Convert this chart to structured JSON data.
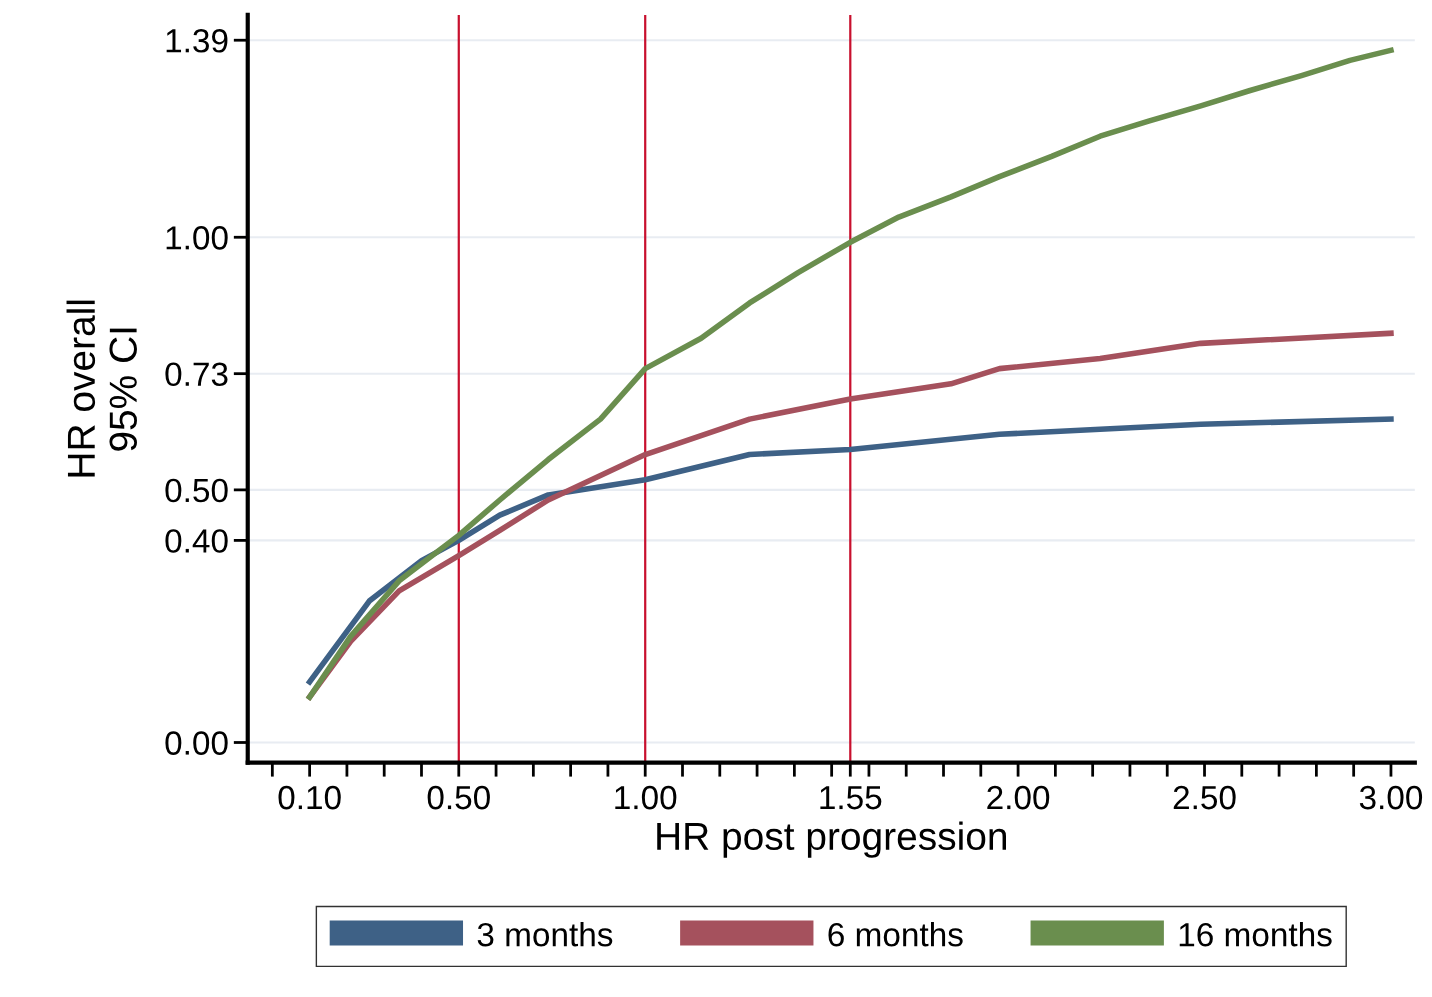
{
  "chart_data": {
    "type": "line",
    "xlabel": "HR post progression",
    "ylabel": "HR overall\n95% CI",
    "xlim": [
      -0.066,
      3.064
    ],
    "ylim": [
      -0.04,
      1.44
    ],
    "xticks": [
      {
        "value": 0.0,
        "label": null
      },
      {
        "value": 0.1,
        "label": "0.10"
      },
      {
        "value": 0.2,
        "label": null
      },
      {
        "value": 0.3,
        "label": null
      },
      {
        "value": 0.4,
        "label": null
      },
      {
        "value": 0.5,
        "label": "0.50"
      },
      {
        "value": 0.6,
        "label": null
      },
      {
        "value": 0.7,
        "label": null
      },
      {
        "value": 0.8,
        "label": null
      },
      {
        "value": 0.9,
        "label": null
      },
      {
        "value": 1.0,
        "label": "1.00"
      },
      {
        "value": 1.1,
        "label": null
      },
      {
        "value": 1.2,
        "label": null
      },
      {
        "value": 1.3,
        "label": null
      },
      {
        "value": 1.4,
        "label": null
      },
      {
        "value": 1.5,
        "label": null
      },
      {
        "value": 1.55,
        "label": "1.55"
      },
      {
        "value": 1.6,
        "label": null
      },
      {
        "value": 1.7,
        "label": null
      },
      {
        "value": 1.8,
        "label": null
      },
      {
        "value": 1.9,
        "label": null
      },
      {
        "value": 2.0,
        "label": "2.00"
      },
      {
        "value": 2.1,
        "label": null
      },
      {
        "value": 2.2,
        "label": null
      },
      {
        "value": 2.3,
        "label": null
      },
      {
        "value": 2.4,
        "label": null
      },
      {
        "value": 2.5,
        "label": "2.50"
      },
      {
        "value": 2.6,
        "label": null
      },
      {
        "value": 2.7,
        "label": null
      },
      {
        "value": 2.8,
        "label": null
      },
      {
        "value": 2.9,
        "label": null
      },
      {
        "value": 3.0,
        "label": "3.00"
      }
    ],
    "yticks": [
      {
        "value": 0.0,
        "label": "0.00"
      },
      {
        "value": 0.4,
        "label": "0.40"
      },
      {
        "value": 0.5,
        "label": "0.50"
      },
      {
        "value": 0.73,
        "label": "0.73"
      },
      {
        "value": 1.0,
        "label": "1.00"
      },
      {
        "value": 1.39,
        "label": "1.39"
      }
    ],
    "grid": "y",
    "legend": "bottom",
    "marker": "none",
    "line_style": "solid",
    "ref_lines": [
      {
        "axis": "x",
        "value": 0.5,
        "color": "#c8102e"
      },
      {
        "axis": "x",
        "value": 1.0,
        "color": "#c8102e"
      },
      {
        "axis": "x",
        "value": 1.55,
        "color": "#c8102e"
      }
    ],
    "series": [
      {
        "name": "3 months",
        "color": "#3e6186",
        "x": [
          0.1,
          0.15,
          0.26,
          0.4,
          0.5,
          0.61,
          0.74,
          1.0,
          1.28,
          1.55,
          1.95,
          2.22,
          2.49,
          3.0
        ],
        "values": [
          0.12,
          0.17,
          0.28,
          0.36,
          0.4,
          0.45,
          0.49,
          0.52,
          0.57,
          0.58,
          0.61,
          0.62,
          0.63,
          0.64
        ]
      },
      {
        "name": "6 months",
        "color": "#a5515d",
        "x": [
          0.1,
          0.21,
          0.34,
          0.5,
          0.61,
          0.74,
          1.0,
          1.28,
          1.55,
          1.82,
          1.95,
          2.22,
          2.49,
          3.0
        ],
        "values": [
          0.09,
          0.2,
          0.3,
          0.37,
          0.42,
          0.48,
          0.57,
          0.64,
          0.68,
          0.71,
          0.74,
          0.76,
          0.79,
          0.81
        ]
      },
      {
        "name": "16 months",
        "color": "#6a8e4e",
        "x": [
          0.1,
          0.21,
          0.34,
          0.5,
          0.61,
          0.74,
          0.88,
          1.0,
          1.15,
          1.28,
          1.41,
          1.55,
          1.68,
          1.82,
          1.95,
          2.09,
          2.22,
          2.35,
          2.49,
          2.62,
          2.76,
          2.89,
          3.0
        ],
        "values": [
          0.09,
          0.21,
          0.32,
          0.41,
          0.48,
          0.56,
          0.64,
          0.74,
          0.8,
          0.87,
          0.93,
          0.99,
          1.04,
          1.08,
          1.12,
          1.16,
          1.2,
          1.23,
          1.26,
          1.29,
          1.32,
          1.35,
          1.37
        ]
      }
    ]
  }
}
